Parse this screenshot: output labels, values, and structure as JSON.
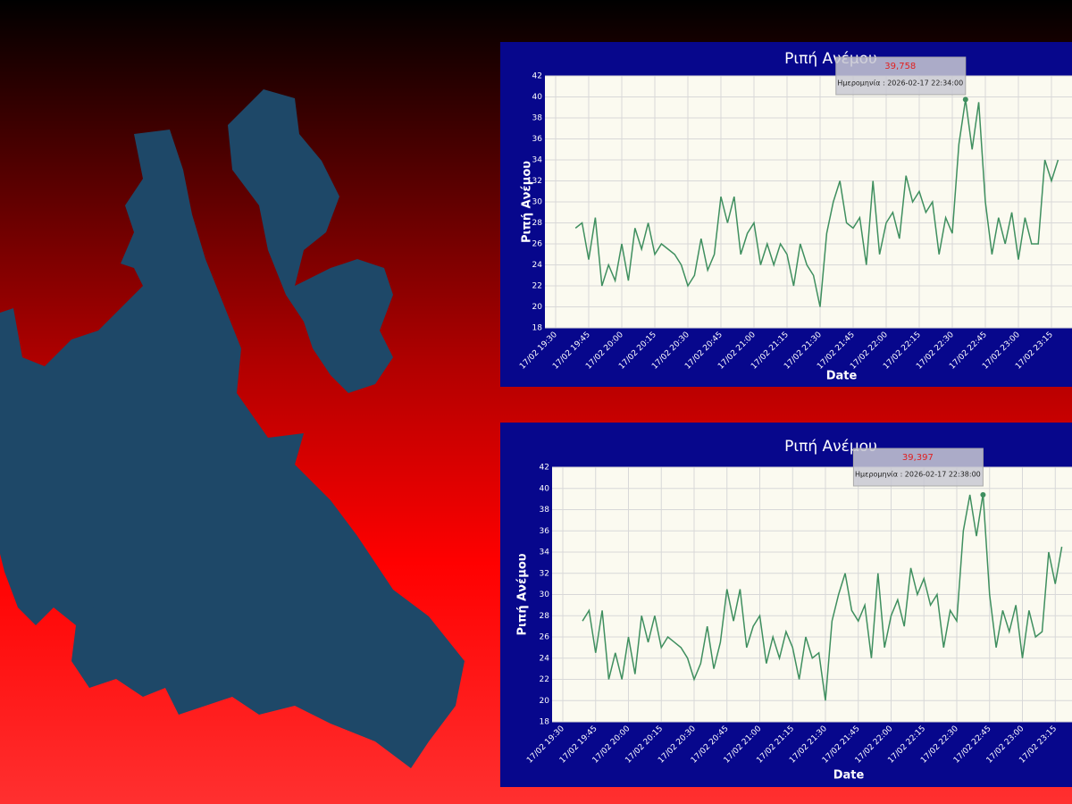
{
  "chart_data": [
    {
      "type": "line",
      "title": "Ριπή Ανέμου",
      "y_label": "Ριπή Ανέμου",
      "x_label": "Date",
      "categories": [
        "17/02 19:30",
        null,
        null,
        null,
        null,
        "17/02 19:45",
        null,
        null,
        null,
        null,
        "17/02 20:00",
        null,
        null,
        null,
        null,
        "17/02 20:15",
        null,
        null,
        null,
        null,
        "17/02 20:30",
        null,
        null,
        null,
        null,
        "17/02 20:45",
        null,
        null,
        null,
        null,
        "17/02 21:00",
        null,
        null,
        null,
        null,
        "17/02 21:15",
        null,
        null,
        null,
        null,
        "17/02 21:30",
        null,
        null,
        null,
        null,
        "17/02 21:45",
        null,
        null,
        null,
        null,
        "17/02 22:00",
        null,
        null,
        null,
        null,
        "17/02 22:15",
        null,
        null,
        null,
        null,
        "17/02 22:30",
        null,
        null,
        null,
        null,
        "17/02 22:45",
        null,
        null,
        null,
        null,
        "17/02 23:00",
        null,
        null,
        null,
        null,
        "17/02 23:15",
        null
      ],
      "series": [
        {
          "name": "Ριπή Ανέμου",
          "color": "#3f8f5f",
          "values": [
            null,
            null,
            null,
            27.5,
            28,
            24.5,
            28.5,
            22,
            24,
            22.5,
            26,
            22.5,
            27.5,
            25.5,
            28,
            25,
            26,
            25.5,
            25,
            24,
            22,
            23,
            26.5,
            23.5,
            25,
            30.5,
            28,
            30.5,
            25,
            27,
            28,
            24,
            26,
            24,
            26,
            25,
            22,
            26,
            24,
            23,
            20,
            27,
            30,
            32,
            28,
            27.5,
            28.5,
            24,
            32,
            25,
            28,
            29,
            26.5,
            32.5,
            30,
            31,
            29,
            30,
            25,
            28.5,
            27,
            35.5,
            39.758,
            35,
            39.5,
            30,
            25,
            28.5,
            26,
            29,
            24.5,
            28.5,
            26,
            26,
            34,
            32,
            34
          ]
        }
      ],
      "ylim": [
        18,
        42
      ],
      "yticks": [
        18,
        20,
        22,
        24,
        26,
        28,
        30,
        32,
        34,
        36,
        38,
        40,
        42
      ],
      "grid": true,
      "tooltip": {
        "value": 39.758,
        "label": "39,758",
        "date": "Ημερομηνία : 2026-02-17 22:34:00"
      }
    },
    {
      "type": "line",
      "title": "Ριπή Ανέμου",
      "y_label": "Ριπή Ανέμου",
      "x_label": "Date",
      "categories": [
        "17/02 19:30",
        null,
        null,
        null,
        null,
        "17/02 19:45",
        null,
        null,
        null,
        null,
        "17/02 20:00",
        null,
        null,
        null,
        null,
        "17/02 20:15",
        null,
        null,
        null,
        null,
        "17/02 20:30",
        null,
        null,
        null,
        null,
        "17/02 20:45",
        null,
        null,
        null,
        null,
        "17/02 21:00",
        null,
        null,
        null,
        null,
        "17/02 21:15",
        null,
        null,
        null,
        null,
        "17/02 21:30",
        null,
        null,
        null,
        null,
        "17/02 21:45",
        null,
        null,
        null,
        null,
        "17/02 22:00",
        null,
        null,
        null,
        null,
        "17/02 22:15",
        null,
        null,
        null,
        null,
        "17/02 22:30",
        null,
        null,
        null,
        null,
        "17/02 22:45",
        null,
        null,
        null,
        null,
        "17/02 23:00",
        null,
        null,
        null,
        null,
        "17/02 23:15",
        null
      ],
      "series": [
        {
          "name": "Ριπή Ανέμου",
          "color": "#3f8f5f",
          "values": [
            null,
            null,
            null,
            27.5,
            28.5,
            24.5,
            28.5,
            22,
            24.5,
            22,
            26,
            22.5,
            28,
            25.5,
            28,
            25,
            26,
            25.5,
            25,
            24,
            22,
            23.5,
            27,
            23,
            25.5,
            30.5,
            27.5,
            30.5,
            25,
            27,
            28,
            23.5,
            26,
            24,
            26.5,
            25,
            22,
            26,
            24,
            24.5,
            20,
            27.5,
            30,
            32,
            28.5,
            27.5,
            29,
            24,
            32,
            25,
            28,
            29.5,
            27,
            32.5,
            30,
            31.5,
            29,
            30,
            25,
            28.5,
            27.5,
            36,
            39.397,
            35.5,
            39.5,
            30,
            25,
            28.5,
            26.5,
            29,
            24,
            28.5,
            26,
            26.5,
            34,
            31,
            34.5
          ]
        }
      ],
      "ylim": [
        18,
        42
      ],
      "yticks": [
        18,
        20,
        22,
        24,
        26,
        28,
        30,
        32,
        34,
        36,
        38,
        40,
        42
      ],
      "grid": true,
      "tooltip": {
        "value": 39.397,
        "label": "39,397",
        "date": "Ημερομηνία : 2026-02-17 22:38:00"
      }
    }
  ]
}
